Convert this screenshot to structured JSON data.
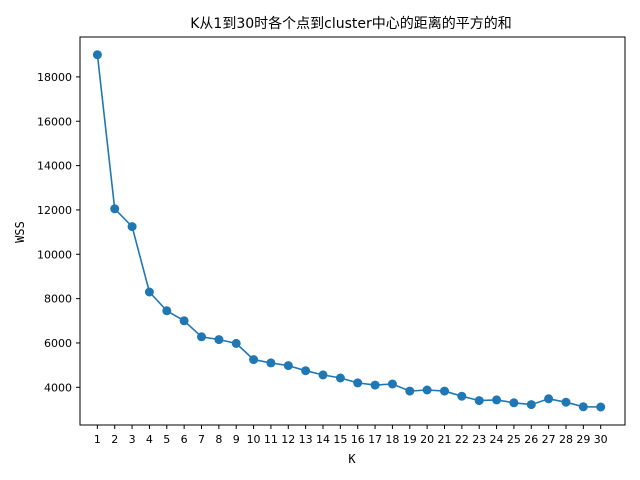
{
  "chart_data": {
    "type": "line",
    "title": "K从1到30时各个点到cluster中心的距离的平方的和",
    "xlabel": "K",
    "ylabel": "WSS",
    "x": [
      1,
      2,
      3,
      4,
      5,
      6,
      7,
      8,
      9,
      10,
      11,
      12,
      13,
      14,
      15,
      16,
      17,
      18,
      19,
      20,
      21,
      22,
      23,
      24,
      25,
      26,
      27,
      28,
      29,
      30
    ],
    "x_ticks": [
      "1",
      "2",
      "3",
      "4",
      "5",
      "6",
      "7",
      "8",
      "9",
      "10",
      "11",
      "12",
      "13",
      "14",
      "15",
      "16",
      "17",
      "18",
      "19",
      "20",
      "21",
      "22",
      "23",
      "24",
      "25",
      "26",
      "27",
      "28",
      "29",
      "30"
    ],
    "y_ticks": [
      4000,
      6000,
      8000,
      10000,
      12000,
      14000,
      16000,
      18000
    ],
    "xlim": [
      0,
      31.4
    ],
    "ylim": [
      2300,
      19800
    ],
    "grid": false,
    "series": [
      {
        "values": [
          19000,
          12050,
          11250,
          8300,
          7450,
          7000,
          6280,
          6150,
          5980,
          5250,
          5100,
          4980,
          4750,
          4560,
          4420,
          4200,
          4100,
          4150,
          3830,
          3880,
          3830,
          3600,
          3400,
          3430,
          3300,
          3220,
          3480,
          3330,
          3120,
          3110
        ],
        "color": "#1f77b4",
        "marker": "circle"
      }
    ]
  }
}
